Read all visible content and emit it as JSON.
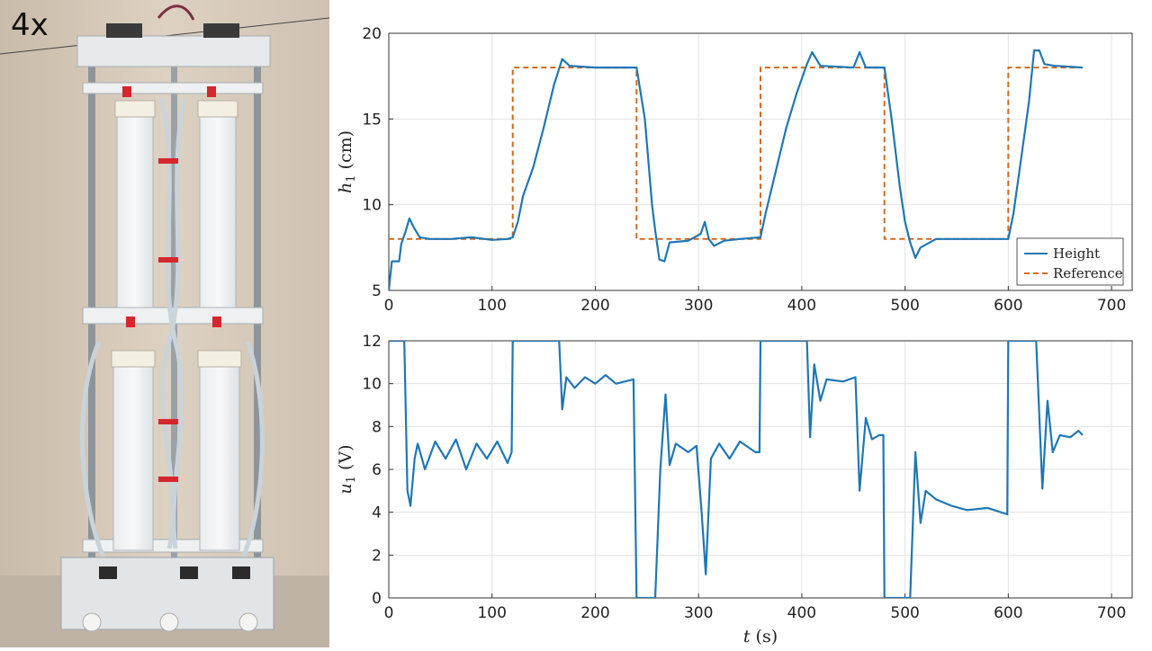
{
  "photo": {
    "speed_label": "4x",
    "description_icon": "quadruple-tank-rig-photo"
  },
  "colors": {
    "height": "#1f77b4",
    "reference": "#d2691e",
    "grid": "#e3e3e3",
    "axis": "#333333"
  },
  "chart_data": [
    {
      "type": "line",
      "xlabel": "",
      "ylabel_var": "h",
      "ylabel_sub": "1",
      "ylabel_unit": "(cm)",
      "xlim": [
        0,
        720
      ],
      "ylim": [
        5,
        20
      ],
      "xticks": [
        0,
        100,
        200,
        300,
        400,
        500,
        600,
        700
      ],
      "yticks": [
        5,
        10,
        15,
        20
      ],
      "grid": true,
      "legend_position": "bottom-right",
      "series": [
        {
          "name": "Height",
          "style": "solid",
          "points": [
            [
              0,
              5
            ],
            [
              3,
              6.7
            ],
            [
              10,
              6.7
            ],
            [
              12,
              7.7
            ],
            [
              16,
              8.4
            ],
            [
              20,
              9.2
            ],
            [
              24,
              8.7
            ],
            [
              30,
              8.1
            ],
            [
              40,
              8
            ],
            [
              60,
              8
            ],
            [
              80,
              8.1
            ],
            [
              100,
              7.95
            ],
            [
              115,
              8
            ],
            [
              120,
              8.1
            ],
            [
              125,
              9
            ],
            [
              130,
              10.5
            ],
            [
              140,
              12.2
            ],
            [
              150,
              14.5
            ],
            [
              160,
              17
            ],
            [
              168,
              18.5
            ],
            [
              175,
              18.1
            ],
            [
              200,
              18
            ],
            [
              240,
              18
            ],
            [
              248,
              15
            ],
            [
              255,
              10
            ],
            [
              258,
              8.5
            ],
            [
              262,
              6.8
            ],
            [
              267,
              6.7
            ],
            [
              272,
              7.8
            ],
            [
              290,
              7.9
            ],
            [
              302,
              8.3
            ],
            [
              306,
              9
            ],
            [
              310,
              8
            ],
            [
              315,
              7.6
            ],
            [
              325,
              7.9
            ],
            [
              340,
              8
            ],
            [
              360,
              8.1
            ],
            [
              365,
              9.5
            ],
            [
              375,
              12
            ],
            [
              385,
              14.5
            ],
            [
              395,
              16.5
            ],
            [
              405,
              18.2
            ],
            [
              410,
              18.9
            ],
            [
              418,
              18.1
            ],
            [
              450,
              18
            ],
            [
              456,
              18.9
            ],
            [
              462,
              18
            ],
            [
              480,
              18
            ],
            [
              487,
              15
            ],
            [
              495,
              11
            ],
            [
              500,
              9
            ],
            [
              505,
              7.8
            ],
            [
              510,
              6.9
            ],
            [
              515,
              7.5
            ],
            [
              530,
              8
            ],
            [
              560,
              8
            ],
            [
              600,
              8
            ],
            [
              605,
              9.5
            ],
            [
              612,
              12.5
            ],
            [
              620,
              16
            ],
            [
              625,
              19
            ],
            [
              630,
              19
            ],
            [
              635,
              18.2
            ],
            [
              645,
              18.1
            ],
            [
              672,
              18
            ]
          ]
        },
        {
          "name": "Reference",
          "style": "dashed",
          "points": [
            [
              0,
              8
            ],
            [
              120,
              8
            ],
            [
              120,
              18
            ],
            [
              240,
              18
            ],
            [
              240,
              8
            ],
            [
              360,
              8
            ],
            [
              360,
              18
            ],
            [
              480,
              18
            ],
            [
              480,
              8
            ],
            [
              600,
              8
            ],
            [
              600,
              18
            ],
            [
              672,
              18
            ]
          ]
        }
      ]
    },
    {
      "type": "line",
      "xlabel_var": "t",
      "xlabel_unit": "(s)",
      "ylabel_var": "u",
      "ylabel_sub": "1",
      "ylabel_unit": "(V)",
      "xlim": [
        0,
        720
      ],
      "ylim": [
        0,
        12
      ],
      "xticks": [
        0,
        100,
        200,
        300,
        400,
        500,
        600,
        700
      ],
      "yticks": [
        0,
        2,
        4,
        6,
        8,
        10,
        12
      ],
      "grid": true,
      "series": [
        {
          "name": "",
          "style": "solid",
          "points": [
            [
              0,
              12
            ],
            [
              15,
              12
            ],
            [
              18,
              5
            ],
            [
              21,
              4.3
            ],
            [
              25,
              6.5
            ],
            [
              28,
              7.2
            ],
            [
              35,
              6
            ],
            [
              45,
              7.3
            ],
            [
              55,
              6.5
            ],
            [
              65,
              7.4
            ],
            [
              75,
              6
            ],
            [
              85,
              7.2
            ],
            [
              95,
              6.5
            ],
            [
              105,
              7.3
            ],
            [
              115,
              6.3
            ],
            [
              119,
              6.8
            ],
            [
              120,
              12
            ],
            [
              165,
              12
            ],
            [
              168,
              8.8
            ],
            [
              172,
              10.3
            ],
            [
              180,
              9.8
            ],
            [
              190,
              10.3
            ],
            [
              200,
              10
            ],
            [
              210,
              10.4
            ],
            [
              220,
              10
            ],
            [
              237,
              10.2
            ],
            [
              240,
              0
            ],
            [
              258,
              0
            ],
            [
              263,
              6
            ],
            [
              268,
              9.5
            ],
            [
              272,
              6.2
            ],
            [
              278,
              7.2
            ],
            [
              290,
              6.8
            ],
            [
              298,
              7.1
            ],
            [
              303,
              4
            ],
            [
              307,
              1.1
            ],
            [
              312,
              6.5
            ],
            [
              320,
              7.2
            ],
            [
              330,
              6.5
            ],
            [
              340,
              7.3
            ],
            [
              355,
              6.8
            ],
            [
              359,
              6.8
            ],
            [
              360,
              12
            ],
            [
              405,
              12
            ],
            [
              408,
              7.5
            ],
            [
              412,
              10.9
            ],
            [
              418,
              9.2
            ],
            [
              424,
              10.2
            ],
            [
              440,
              10.1
            ],
            [
              452,
              10.3
            ],
            [
              456,
              5
            ],
            [
              462,
              8.4
            ],
            [
              468,
              7.4
            ],
            [
              475,
              7.6
            ],
            [
              479,
              7.6
            ],
            [
              480,
              0
            ],
            [
              505,
              0
            ],
            [
              510,
              6.8
            ],
            [
              515,
              3.5
            ],
            [
              520,
              5
            ],
            [
              530,
              4.6
            ],
            [
              545,
              4.3
            ],
            [
              560,
              4.1
            ],
            [
              580,
              4.2
            ],
            [
              599,
              3.9
            ],
            [
              600,
              12
            ],
            [
              627,
              12
            ],
            [
              633,
              5.1
            ],
            [
              638,
              9.2
            ],
            [
              643,
              6.8
            ],
            [
              650,
              7.6
            ],
            [
              660,
              7.5
            ],
            [
              668,
              7.8
            ],
            [
              672,
              7.6
            ]
          ]
        }
      ]
    }
  ]
}
